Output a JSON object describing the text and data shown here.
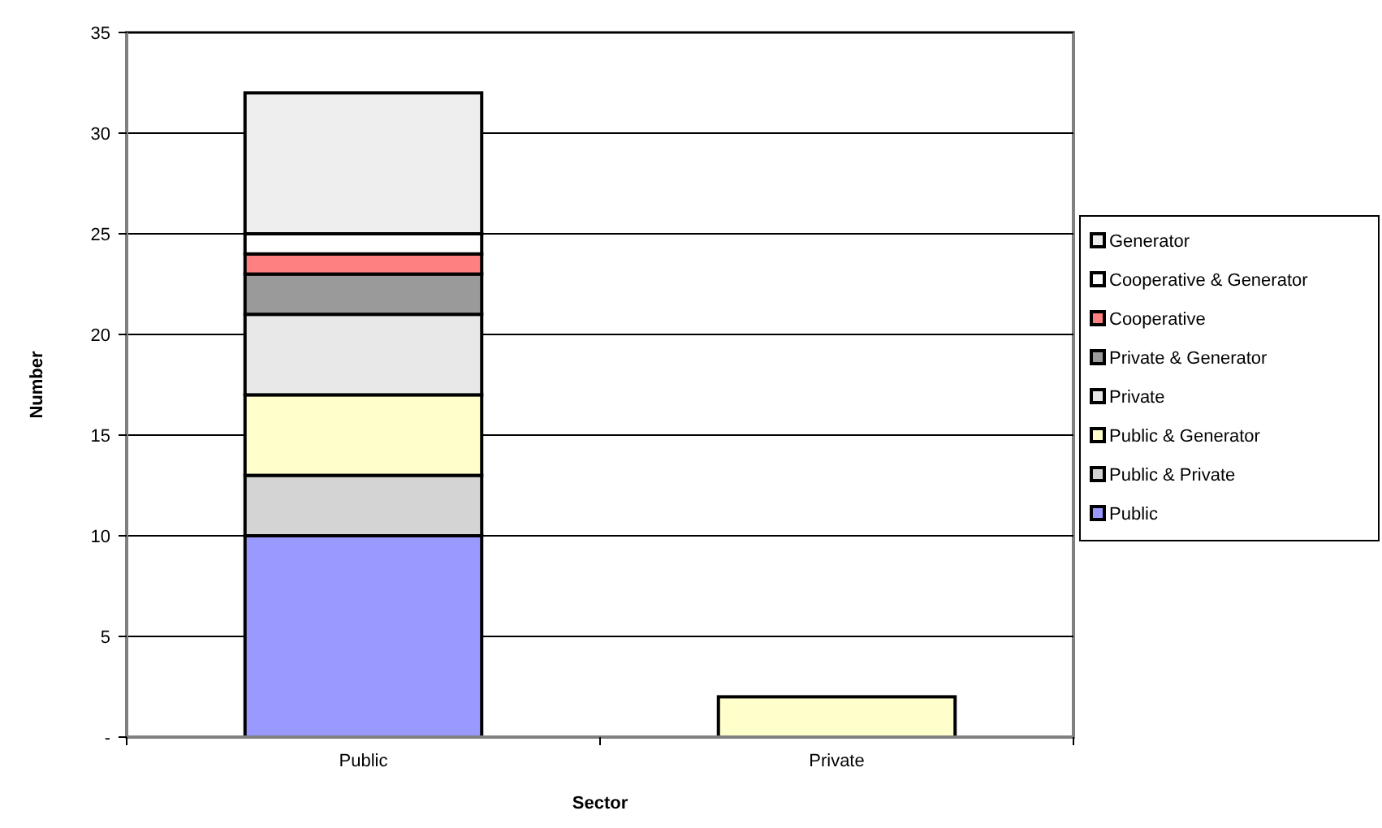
{
  "chart_data": {
    "type": "bar",
    "stacked": true,
    "xlabel": "Sector",
    "ylabel": "Number",
    "categories": [
      "Public",
      "Private"
    ],
    "ylim": [
      0,
      35
    ],
    "yticks": [
      {
        "value": 0,
        "label": "-"
      },
      5,
      10,
      15,
      20,
      25,
      30,
      35
    ],
    "grid": "y",
    "legend": "right",
    "series": [
      {
        "name": "Public",
        "color": "#9999ff",
        "values": [
          10,
          null
        ]
      },
      {
        "name": "Public & Private",
        "color": "#d4d4d4",
        "values": [
          3,
          null
        ]
      },
      {
        "name": "Public & Generator",
        "color": "#ffffcc",
        "values": [
          4,
          2
        ]
      },
      {
        "name": "Private",
        "color": "#e8e8e8",
        "values": [
          4,
          null
        ]
      },
      {
        "name": "Private & Generator",
        "color": "#9a9a9a",
        "values": [
          2,
          null
        ]
      },
      {
        "name": "Cooperative",
        "color": "#ff8080",
        "values": [
          1,
          null
        ]
      },
      {
        "name": "Cooperative & Generator",
        "color": "#ffffff",
        "values": [
          1,
          null
        ]
      },
      {
        "name": "Generator",
        "color": "#eeeeee",
        "values": [
          7,
          null
        ]
      }
    ]
  }
}
